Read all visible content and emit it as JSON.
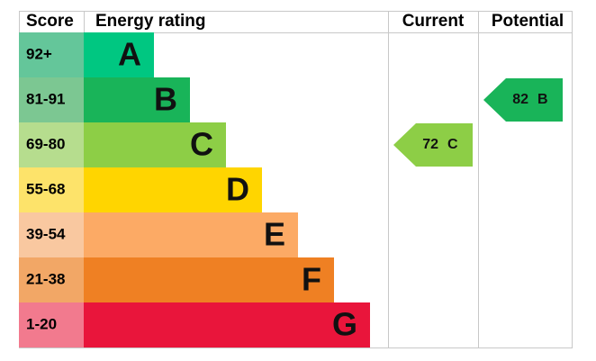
{
  "header": {
    "score": "Score",
    "energy_rating": "Energy rating",
    "current": "Current",
    "potential": "Potential"
  },
  "bands": [
    {
      "score": "92+",
      "letter": "A",
      "color": "#00c781",
      "score_color": "#64c69a"
    },
    {
      "score": "81-91",
      "letter": "B",
      "color": "#19b459",
      "score_color": "#7cc792"
    },
    {
      "score": "69-80",
      "letter": "C",
      "color": "#8dce46",
      "score_color": "#b6dd8e"
    },
    {
      "score": "55-68",
      "letter": "D",
      "color": "#ffd500",
      "score_color": "#fde36a"
    },
    {
      "score": "39-54",
      "letter": "E",
      "color": "#fcaa65",
      "score_color": "#f9c8a0"
    },
    {
      "score": "21-38",
      "letter": "F",
      "color": "#ef8023",
      "score_color": "#f2a766"
    },
    {
      "score": "1-20",
      "letter": "G",
      "color": "#e9153b",
      "score_color": "#f27a8e"
    }
  ],
  "current": {
    "value": 72,
    "letter": "C"
  },
  "potential": {
    "value": 82,
    "letter": "B"
  }
}
